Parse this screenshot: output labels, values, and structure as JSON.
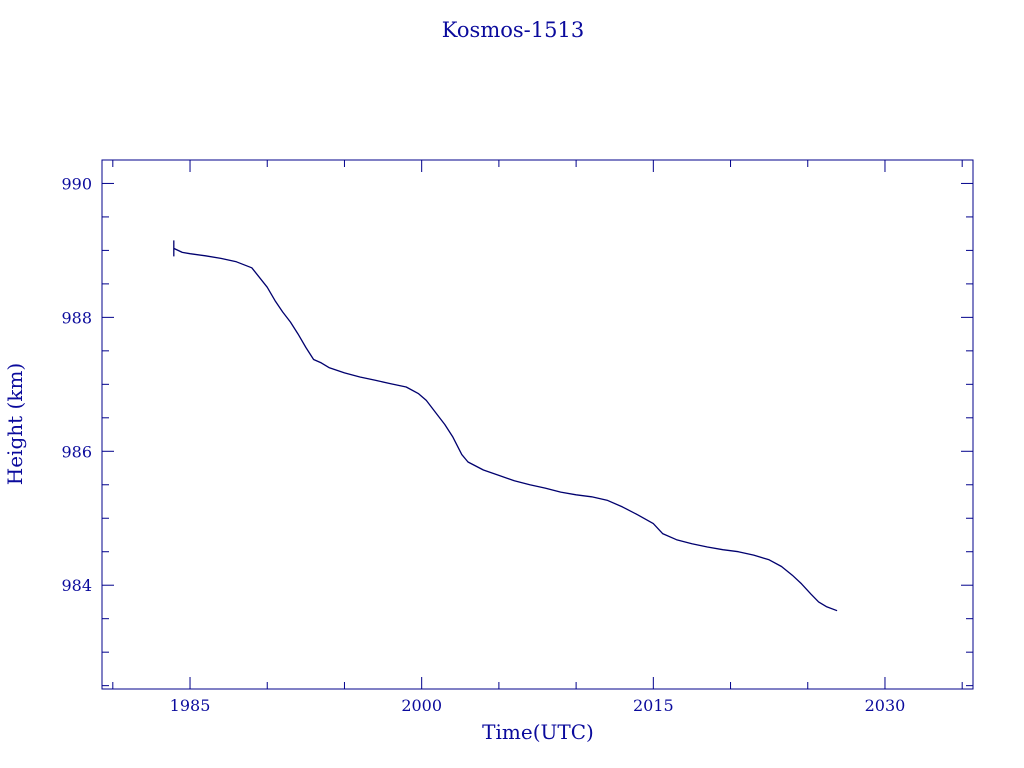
{
  "chart_data": {
    "type": "line",
    "title": "Kosmos-1513",
    "xlabel": "Time(UTC)",
    "ylabel": "Height (km)",
    "xlim": [
      1979.3,
      2035.7
    ],
    "ylim": [
      982.45,
      990.35
    ],
    "x_ticks": [
      1985,
      2000,
      2015,
      2030
    ],
    "x_tick_labels": [
      "1985",
      "2000",
      "2015",
      "2030"
    ],
    "x_minor_step": 5,
    "y_ticks": [
      984,
      986,
      988,
      990
    ],
    "y_tick_labels": [
      "984",
      "986",
      "988",
      "990"
    ],
    "y_minor_step": 0.5,
    "grid": false,
    "line_color": "#00006e",
    "text_color": "#0a0a9c",
    "axis_color": "#00008b",
    "series": [
      {
        "x": [
          1983.95,
          1984.5,
          1985.0,
          1986.0,
          1987.0,
          1988.0,
          1989.0,
          1990.0,
          1990.5,
          1991.0,
          1991.5,
          1992.0,
          1992.5,
          1993.0,
          1993.5,
          1994.0,
          1995.0,
          1996.0,
          1997.0,
          1998.0,
          1999.0,
          1999.8,
          2000.3,
          2001.0,
          2001.5,
          2002.0,
          2002.6,
          2003.0,
          2004.0,
          2005.0,
          2006.0,
          2007.0,
          2008.0,
          2009.0,
          2010.0,
          2011.0,
          2012.0,
          2013.0,
          2014.0,
          2015.0,
          2015.6,
          2016.5,
          2017.5,
          2018.5,
          2019.5,
          2020.5,
          2021.5,
          2022.5,
          2023.3,
          2024.0,
          2024.6,
          2025.2,
          2025.7,
          2026.2,
          2026.9
        ],
        "y": [
          989.03,
          988.97,
          988.95,
          988.92,
          988.88,
          988.83,
          988.74,
          988.45,
          988.25,
          988.08,
          987.93,
          987.75,
          987.55,
          987.37,
          987.32,
          987.25,
          987.17,
          987.11,
          987.06,
          987.01,
          986.96,
          986.86,
          986.76,
          986.55,
          986.4,
          986.22,
          985.95,
          985.84,
          985.72,
          985.64,
          985.56,
          985.5,
          985.45,
          985.39,
          985.35,
          985.32,
          985.27,
          985.17,
          985.05,
          984.92,
          984.77,
          984.68,
          984.62,
          984.57,
          984.53,
          984.5,
          984.45,
          984.38,
          984.28,
          984.15,
          984.02,
          983.87,
          983.75,
          983.68,
          983.62
        ]
      }
    ]
  }
}
